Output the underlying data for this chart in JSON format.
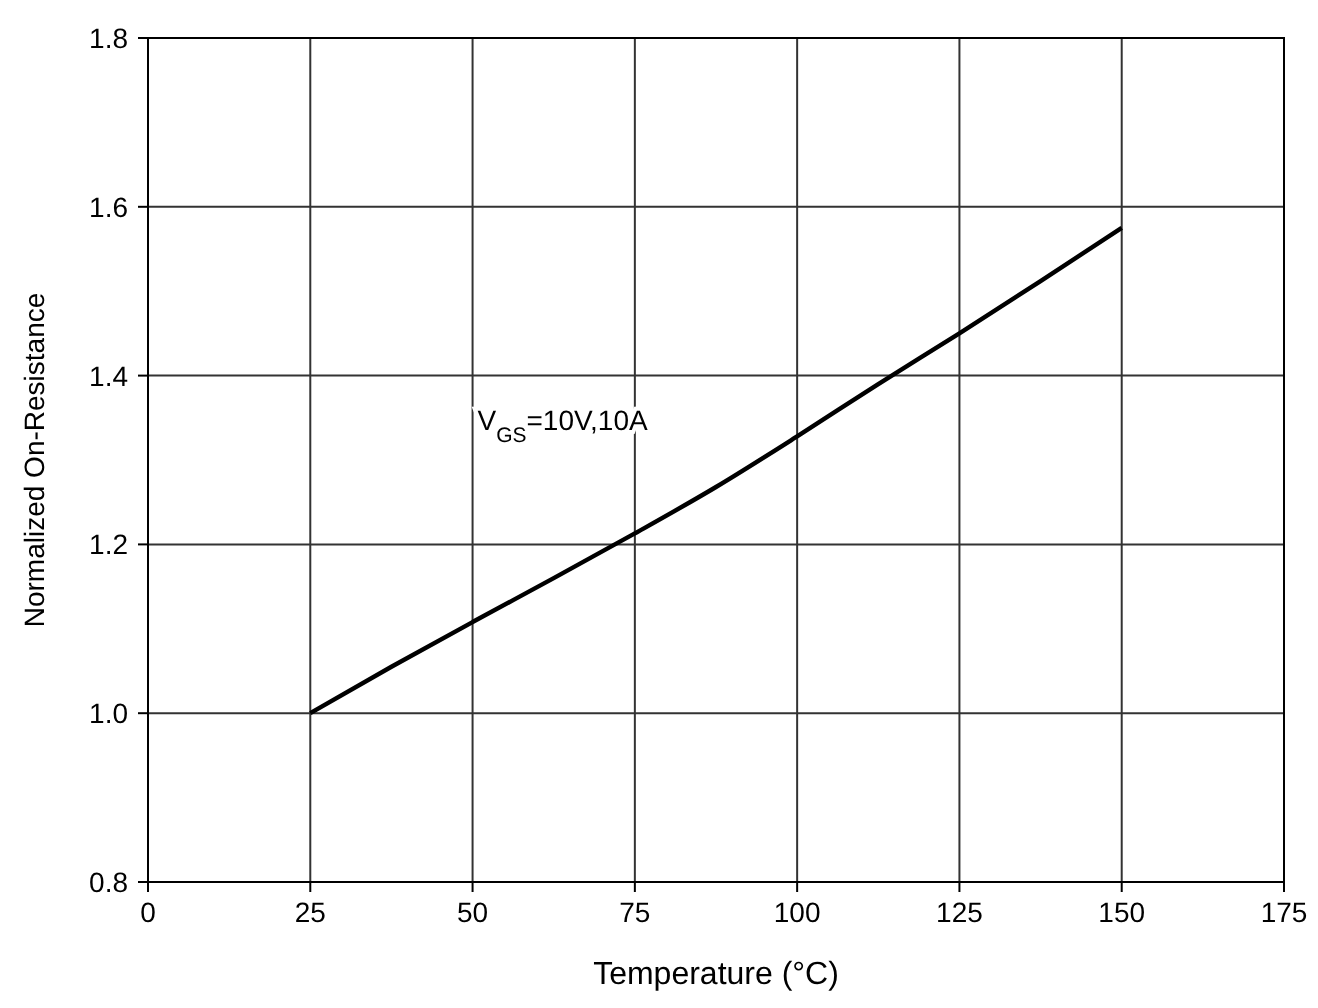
{
  "chart_data": {
    "type": "line",
    "xlabel": "Temperature (°C)",
    "ylabel": "Normalized On-Resistance",
    "x": [
      25,
      37.5,
      50,
      62.5,
      75,
      87.5,
      100,
      112.5,
      125,
      137.5,
      150
    ],
    "series": [
      {
        "color": "#000000",
        "values": [
          1.0,
          1.055,
          1.108,
          1.16,
          1.213,
          1.268,
          1.328,
          1.39,
          1.45,
          1.512,
          1.575
        ]
      }
    ],
    "xlim": [
      0,
      175
    ],
    "xticks": [
      0,
      25,
      50,
      75,
      100,
      125,
      150,
      175
    ],
    "ylim": [
      0.8,
      1.8
    ],
    "yticks": [
      {
        "value": 0.8,
        "label": "0.8"
      },
      {
        "value": 1.0,
        "label": "1.0"
      },
      {
        "value": 1.2,
        "label": "1.2"
      },
      {
        "value": 1.4,
        "label": "1.4"
      },
      {
        "value": 1.6,
        "label": "1.6"
      },
      {
        "value": 1.8,
        "label": "1.8"
      }
    ],
    "grid": true,
    "marker": "none",
    "line_style": "solid",
    "annotations": [
      "V$_{GS}$=10V,10A"
    ]
  }
}
